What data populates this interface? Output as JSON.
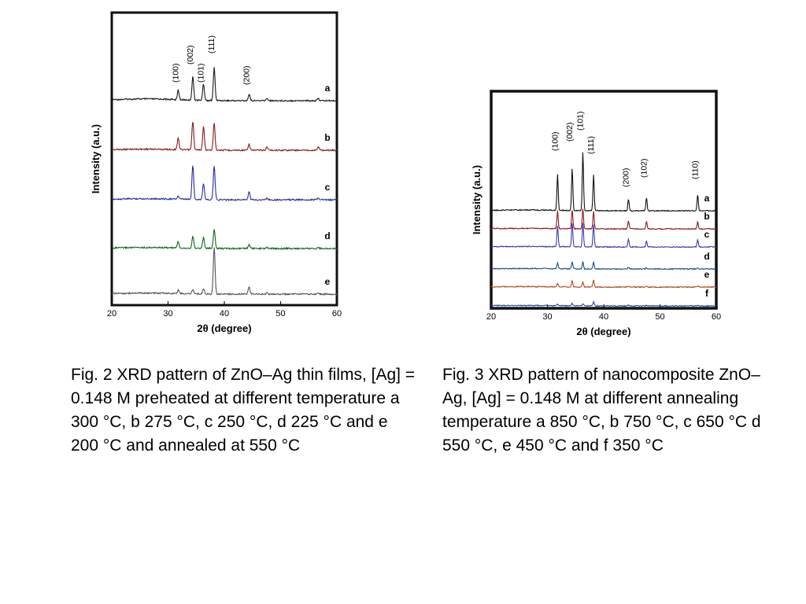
{
  "captions": {
    "fig2": "Fig. 2 XRD pattern of ZnO–Ag thin films, [Ag] = 0.148 M preheated at different temperature a 300 °C, b 275 °C, c 250 °C, d 225 °C and e 200 °C and annealed at 550 °C",
    "fig3": "Fig. 3 XRD pattern of nanocomposite ZnO–Ag, [Ag] = 0.148 M at different annealing temperature a 850 °C, b 750 °C, c 650 °C d 550 °C, e 450 °C and f 350 °C"
  },
  "chart_data": [
    {
      "type": "line",
      "xlabel": "2θ (degree)",
      "ylabel": "Intensity (a.u.)",
      "xlim": [
        20,
        60
      ],
      "xticks": [
        20,
        30,
        40,
        50,
        60
      ],
      "peak_positions": [
        31.8,
        34.4,
        36.3,
        38.2,
        44.4,
        47.6,
        56.7
      ],
      "peak_labels": [
        {
          "text": "(100)",
          "x": 31.8
        },
        {
          "text": "(002)",
          "x": 34.4
        },
        {
          "text": "(101)",
          "x": 36.3
        },
        {
          "text": "(111)",
          "x": 38.2
        },
        {
          "text": "(200)",
          "x": 44.4
        }
      ],
      "series": [
        {
          "name": "a",
          "color": "#1a1a1a",
          "peak_heights": [
            0.17,
            0.42,
            0.3,
            0.6,
            0.12,
            0.04,
            0.04
          ]
        },
        {
          "name": "b",
          "color": "#8b1a1a",
          "peak_heights": [
            0.22,
            0.52,
            0.42,
            0.5,
            0.1,
            0.06,
            0.06
          ]
        },
        {
          "name": "c",
          "color": "#2a2aa8",
          "peak_heights": [
            0.06,
            0.62,
            0.3,
            0.62,
            0.14,
            0.03,
            0.03
          ]
        },
        {
          "name": "d",
          "color": "#0d6b1a",
          "peak_heights": [
            0.12,
            0.22,
            0.2,
            0.36,
            0.07,
            0.02,
            0.02
          ]
        },
        {
          "name": "e",
          "color": "#555555",
          "peak_heights": [
            0.06,
            0.08,
            0.1,
            0.86,
            0.14,
            0.02,
            0.02
          ]
        }
      ]
    },
    {
      "type": "line",
      "xlabel": "2θ (degree)",
      "ylabel": "Intensity (a.u.)",
      "xlim": [
        20,
        60
      ],
      "xticks": [
        20,
        30,
        40,
        50,
        60
      ],
      "peak_positions": [
        31.8,
        34.4,
        36.3,
        38.2,
        44.4,
        47.6,
        56.7
      ],
      "peak_labels": [
        {
          "text": "(100)",
          "x": 31.8
        },
        {
          "text": "(002)",
          "x": 34.4
        },
        {
          "text": "(101)",
          "x": 36.3
        },
        {
          "text": "(111)",
          "x": 38.2
        },
        {
          "text": "(200)",
          "x": 44.4
        },
        {
          "text": "(102)",
          "x": 47.6
        },
        {
          "text": "(110)",
          "x": 56.7
        }
      ],
      "series": [
        {
          "name": "a",
          "color": "#111111",
          "peak_heights": [
            0.62,
            0.72,
            1.0,
            0.62,
            0.2,
            0.22,
            0.28
          ]
        },
        {
          "name": "b",
          "color": "#8b1a1a",
          "peak_heights": [
            0.3,
            0.32,
            0.34,
            0.3,
            0.14,
            0.12,
            0.12
          ]
        },
        {
          "name": "c",
          "color": "#3b3bb0",
          "peak_heights": [
            0.36,
            0.4,
            0.4,
            0.38,
            0.14,
            0.1,
            0.12
          ]
        },
        {
          "name": "d",
          "color": "#1a4a8a",
          "peak_heights": [
            0.1,
            0.12,
            0.12,
            0.12,
            0.03,
            0.02,
            0.02
          ]
        },
        {
          "name": "e",
          "color": "#b04a1a",
          "peak_heights": [
            0.06,
            0.1,
            0.09,
            0.12,
            0.02,
            0.02,
            0.02
          ]
        },
        {
          "name": "f",
          "color": "#1a4aa8",
          "peak_heights": [
            0.03,
            0.04,
            0.04,
            0.07,
            0.02,
            0.01,
            0.01
          ]
        }
      ]
    }
  ]
}
